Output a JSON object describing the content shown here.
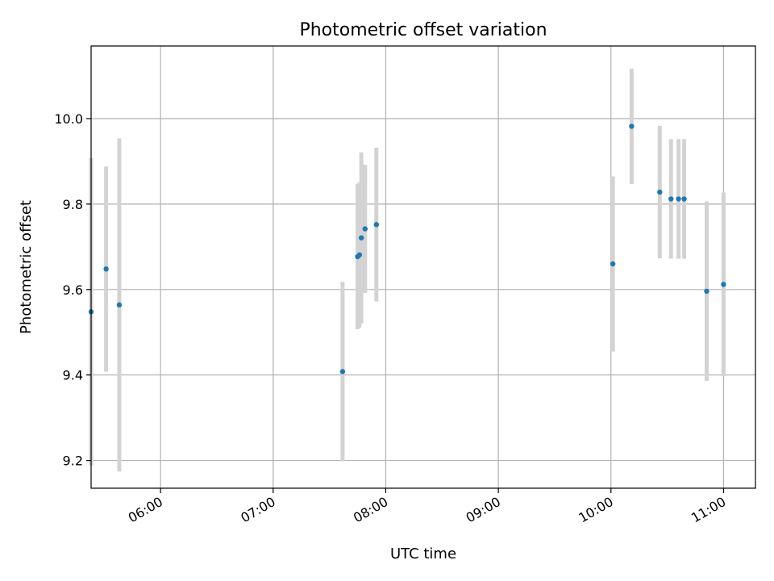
{
  "chart_data": {
    "type": "scatter",
    "title": "Photometric offset variation",
    "xlabel": "UTC time",
    "ylabel": "Photometric offset",
    "xlim": [
      "05:23",
      "11:17"
    ],
    "ylim": [
      9.135,
      10.17
    ],
    "x_ticks": [
      "06:00",
      "07:00",
      "08:00",
      "09:00",
      "10:00",
      "11:00"
    ],
    "y_ticks": [
      9.2,
      9.4,
      9.6,
      9.8,
      10.0
    ],
    "y_tick_labels": [
      "9.2",
      "9.4",
      "9.6",
      "9.8",
      "10.0"
    ],
    "grid": true,
    "x_tick_rotation": "30deg",
    "marker_color": "#1f77b4",
    "errorbar_color": "#d3d3d3",
    "points": [
      {
        "x": "05:23",
        "y": 9.548,
        "err": 0.36
      },
      {
        "x": "05:31",
        "y": 9.648,
        "err": 0.24
      },
      {
        "x": "05:38",
        "y": 9.564,
        "err": 0.39
      },
      {
        "x": "07:37",
        "y": 9.408,
        "err": 0.21
      },
      {
        "x": "07:45",
        "y": 9.677,
        "err": 0.17
      },
      {
        "x": "07:46",
        "y": 9.681,
        "err": 0.17
      },
      {
        "x": "07:47",
        "y": 9.721,
        "err": 0.2
      },
      {
        "x": "07:49",
        "y": 9.742,
        "err": 0.15
      },
      {
        "x": "07:55",
        "y": 9.752,
        "err": 0.18
      },
      {
        "x": "10:01",
        "y": 9.66,
        "err": 0.205
      },
      {
        "x": "10:11",
        "y": 9.982,
        "err": 0.135
      },
      {
        "x": "10:26",
        "y": 9.828,
        "err": 0.155
      },
      {
        "x": "10:32",
        "y": 9.812,
        "err": 0.14
      },
      {
        "x": "10:36",
        "y": 9.812,
        "err": 0.14
      },
      {
        "x": "10:39",
        "y": 9.812,
        "err": 0.14
      },
      {
        "x": "10:51",
        "y": 9.596,
        "err": 0.21
      },
      {
        "x": "11:00",
        "y": 9.612,
        "err": 0.215
      }
    ]
  }
}
